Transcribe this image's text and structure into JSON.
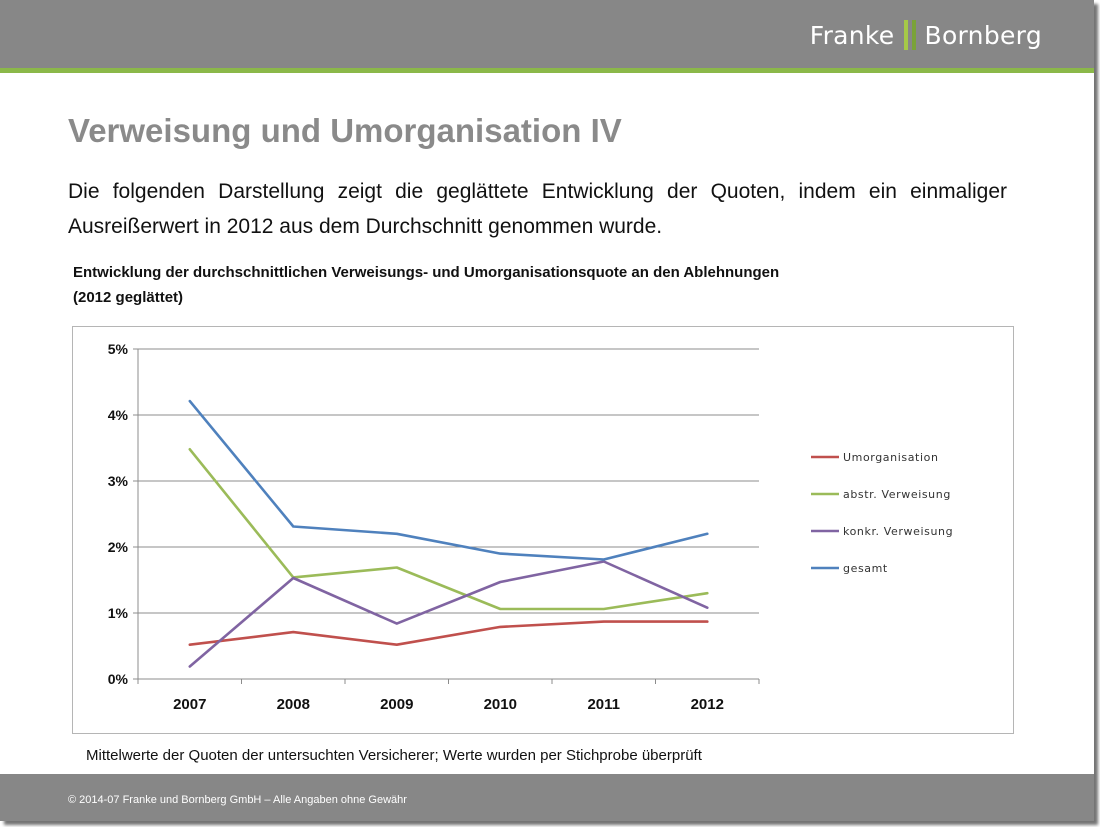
{
  "logo": {
    "left": "Franke",
    "right": "Bornberg"
  },
  "slide": {
    "title": "Verweisung und Umorganisation IV",
    "intro": "Die folgenden Darstellung zeigt die geglättete Entwicklung der Quoten, indem ein einmaliger Ausreißerwert in 2012 aus dem Durchschnitt genommen wurde.",
    "chart_title_line1": "Entwicklung der durchschnittlichen Verweisungs- und Umorganisationsquote an den Ablehnungen",
    "chart_title_line2": "(2012 geglättet)",
    "footnote": "Mittelwerte der Quoten der untersuchten Versicherer; Werte wurden per Stichprobe überprüft",
    "footer": "© 2014-07 Franke und Bornberg GmbH – Alle Angaben ohne Gewähr"
  },
  "colors": {
    "header": "#878787",
    "accent": "#8bb849"
  },
  "chart_data": {
    "type": "line",
    "title": "Entwicklung der durchschnittlichen Verweisungs- und Umorganisationsquote an den Ablehnungen (2012 geglättet)",
    "categories": [
      "2007",
      "2008",
      "2009",
      "2010",
      "2011",
      "2012"
    ],
    "ylim": [
      0,
      0.05
    ],
    "yticks": [
      0,
      0.01,
      0.02,
      0.03,
      0.04,
      0.05
    ],
    "ytick_labels": [
      "0%",
      "1%",
      "2%",
      "3%",
      "4%",
      "5%"
    ],
    "grid": true,
    "legend_position": "right",
    "series": [
      {
        "name": "Umorganisation",
        "color": "#c0504d",
        "values": [
          0.0052,
          0.0071,
          0.0052,
          0.0079,
          0.0087,
          0.0087
        ]
      },
      {
        "name": "abstr. Verweisung",
        "color": "#9bbb59",
        "values": [
          0.0348,
          0.0154,
          0.0169,
          0.0106,
          0.0106,
          0.013
        ]
      },
      {
        "name": "konkr. Verweisung",
        "color": "#8064a2",
        "values": [
          0.0019,
          0.0153,
          0.0084,
          0.0147,
          0.0178,
          0.0108
        ]
      },
      {
        "name": "gesamt",
        "color": "#4f81bd",
        "values": [
          0.0421,
          0.0231,
          0.022,
          0.019,
          0.0181,
          0.022
        ]
      }
    ]
  }
}
